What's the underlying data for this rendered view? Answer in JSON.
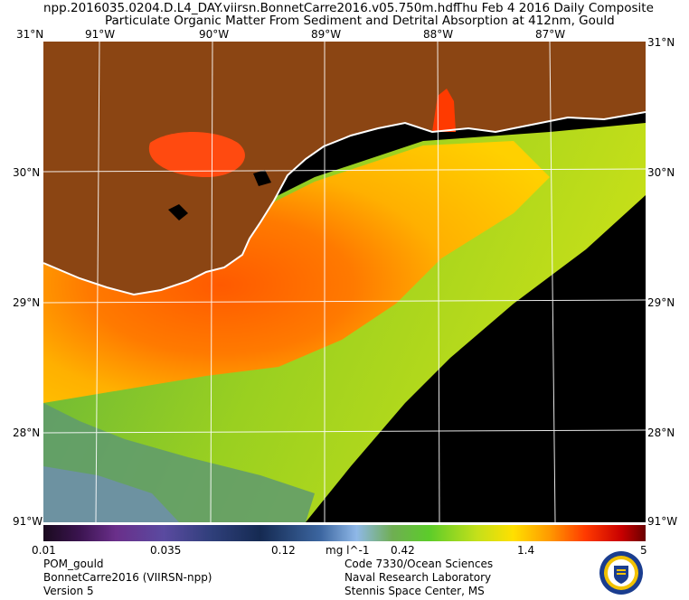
{
  "header": {
    "filename": "npp.2016035.0204.D.L4_DAY.viirsn.BonnetCarre2016.v05.750m.hdf",
    "date": "Thu Feb  4 2016 Daily Composite",
    "product": "Particulate Organic Matter From Sediment and Detrital Absorption at 412nm, Gould"
  },
  "map": {
    "lon_labels": [
      "91°W",
      "90°W",
      "89°W",
      "88°W",
      "87°W"
    ],
    "lat_labels": [
      "31°N",
      "30°N",
      "29°N",
      "28°N"
    ],
    "corner_top": "31°N",
    "corner_bottom": "91°W",
    "colors": {
      "land": "#8b4513",
      "ocean_nodata": "#000000",
      "coast": "#ffffff",
      "grid": "#ffffff"
    }
  },
  "colorbar": {
    "ticks": [
      "0.01",
      "0.035",
      "0.12",
      "0.42",
      "1.4",
      "5"
    ],
    "units": "mg l^-1"
  },
  "footer": {
    "left": [
      "POM_gould",
      "BonnetCarre2016 (VIIRSN-npp)",
      "Version 5"
    ],
    "right": [
      "Code 7330/Ocean Sciences",
      "Naval Research Laboratory",
      "Stennis Space Center, MS"
    ]
  },
  "logo": {
    "icon": "nrl-seal-icon"
  }
}
